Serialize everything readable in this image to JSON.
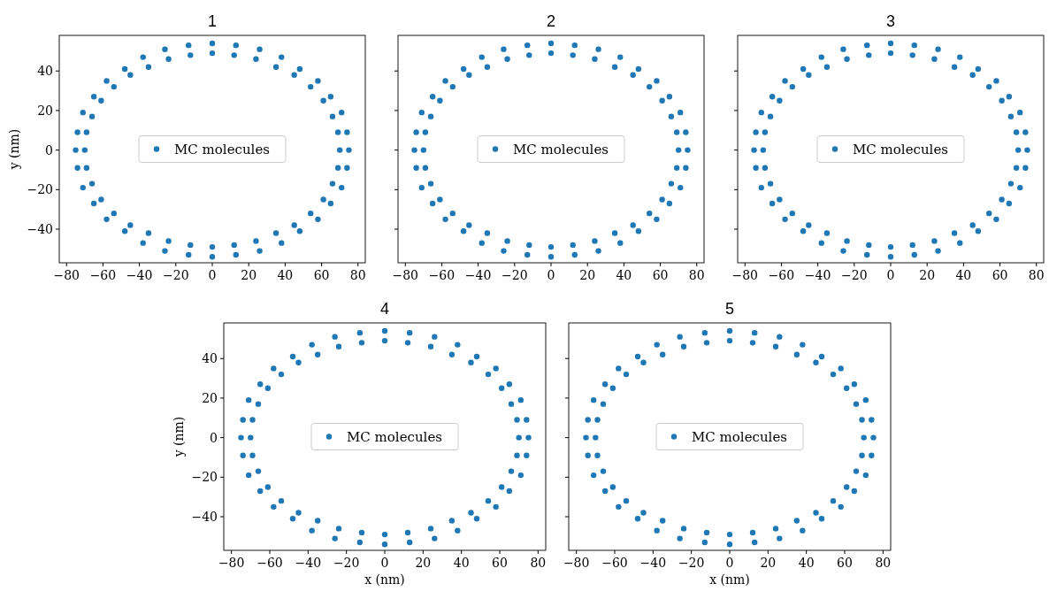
{
  "chart_data": [
    {
      "type": "scatter",
      "title": "1",
      "ylabel": "y (nm)",
      "xlim": [
        -84,
        84
      ],
      "ylim": [
        -57,
        58
      ],
      "xticks": [
        -80,
        -60,
        -40,
        -20,
        0,
        20,
        40,
        60,
        80
      ],
      "yticks": [
        -40,
        -20,
        0,
        20,
        40
      ],
      "legend": "center",
      "marker": "circle",
      "series": [
        {
          "name": "MC molecules",
          "color": "#1f77b4",
          "x": [
            75,
            74,
            71,
            65,
            58,
            48,
            38,
            26,
            13,
            0,
            -13,
            -26,
            -38,
            -48,
            -58,
            -65,
            -71,
            -74,
            -75,
            -74,
            -71,
            -65,
            -58,
            -48,
            -38,
            -26,
            -13,
            0,
            13,
            26,
            38,
            48,
            58,
            65,
            71,
            74,
            70,
            69,
            66,
            61,
            54,
            45,
            35,
            24,
            12,
            0,
            -12,
            -24,
            -35,
            -45,
            -54,
            -61,
            -66,
            -69,
            -70,
            -69,
            -66,
            -61,
            -54,
            -45,
            -35,
            -24,
            -12,
            0,
            12,
            24,
            35,
            45,
            54,
            61,
            66,
            69
          ],
          "values": [
            0,
            9,
            19,
            27,
            35,
            41,
            47,
            51,
            53,
            54,
            53,
            51,
            47,
            41,
            35,
            27,
            19,
            9,
            0,
            -9,
            -19,
            -27,
            -35,
            -41,
            -47,
            -51,
            -53,
            -54,
            -53,
            -51,
            -47,
            -41,
            -35,
            -27,
            -19,
            -9,
            0,
            9,
            17,
            25,
            32,
            38,
            42,
            46,
            48,
            49,
            48,
            46,
            42,
            38,
            32,
            25,
            17,
            9,
            0,
            -9,
            -17,
            -25,
            -32,
            -38,
            -42,
            -46,
            -48,
            -49,
            -48,
            -46,
            -42,
            -38,
            -32,
            -25,
            -17,
            -9
          ]
        }
      ]
    },
    {
      "type": "scatter",
      "title": "2",
      "xlim": [
        -84,
        84
      ],
      "ylim": [
        -57,
        58
      ],
      "xticks": [
        -80,
        -60,
        -40,
        -20,
        0,
        20,
        40,
        60,
        80
      ],
      "yticks": [
        -40,
        -20,
        0,
        20,
        40
      ],
      "tick_labels": "x",
      "legend": "center",
      "marker": "circle",
      "series": [
        {
          "name": "MC molecules",
          "color": "#1f77b4",
          "x": [
            75,
            74,
            71,
            65,
            58,
            48,
            38,
            26,
            13,
            0,
            -13,
            -26,
            -38,
            -48,
            -58,
            -65,
            -71,
            -74,
            -75,
            -74,
            -71,
            -65,
            -58,
            -48,
            -38,
            -26,
            -13,
            0,
            13,
            26,
            38,
            48,
            58,
            65,
            71,
            74,
            70,
            69,
            66,
            61,
            54,
            45,
            35,
            24,
            12,
            0,
            -12,
            -24,
            -35,
            -45,
            -54,
            -61,
            -66,
            -69,
            -70,
            -69,
            -66,
            -61,
            -54,
            -45,
            -35,
            -24,
            -12,
            0,
            12,
            24,
            35,
            45,
            54,
            61,
            66,
            69
          ],
          "values": [
            0,
            9,
            19,
            27,
            35,
            41,
            47,
            51,
            53,
            54,
            53,
            51,
            47,
            41,
            35,
            27,
            19,
            9,
            0,
            -9,
            -19,
            -27,
            -35,
            -41,
            -47,
            -51,
            -53,
            -54,
            -53,
            -51,
            -47,
            -41,
            -35,
            -27,
            -19,
            -9,
            0,
            9,
            17,
            25,
            32,
            38,
            42,
            46,
            48,
            49,
            48,
            46,
            42,
            38,
            32,
            25,
            17,
            9,
            0,
            -9,
            -17,
            -25,
            -32,
            -38,
            -42,
            -46,
            -48,
            -49,
            -48,
            -46,
            -42,
            -38,
            -32,
            -25,
            -17,
            -9
          ]
        }
      ]
    },
    {
      "type": "scatter",
      "title": "3",
      "xlim": [
        -84,
        84
      ],
      "ylim": [
        -57,
        58
      ],
      "xticks": [
        -80,
        -60,
        -40,
        -20,
        0,
        20,
        40,
        60,
        80
      ],
      "yticks": [
        -40,
        -20,
        0,
        20,
        40
      ],
      "tick_labels": "x",
      "legend": "center",
      "marker": "circle",
      "series": [
        {
          "name": "MC molecules",
          "color": "#1f77b4",
          "x": [
            75,
            74,
            71,
            65,
            58,
            48,
            38,
            26,
            13,
            0,
            -13,
            -26,
            -38,
            -48,
            -58,
            -65,
            -71,
            -74,
            -75,
            -74,
            -71,
            -65,
            -58,
            -48,
            -38,
            -26,
            -13,
            0,
            13,
            26,
            38,
            48,
            58,
            65,
            71,
            74,
            70,
            69,
            66,
            61,
            54,
            45,
            35,
            24,
            12,
            0,
            -12,
            -24,
            -35,
            -45,
            -54,
            -61,
            -66,
            -69,
            -70,
            -69,
            -66,
            -61,
            -54,
            -45,
            -35,
            -24,
            -12,
            0,
            12,
            24,
            35,
            45,
            54,
            61,
            66,
            69
          ],
          "values": [
            0,
            9,
            19,
            27,
            35,
            41,
            47,
            51,
            53,
            54,
            53,
            51,
            47,
            41,
            35,
            27,
            19,
            9,
            0,
            -9,
            -19,
            -27,
            -35,
            -41,
            -47,
            -51,
            -53,
            -54,
            -53,
            -51,
            -47,
            -41,
            -35,
            -27,
            -19,
            -9,
            0,
            9,
            17,
            25,
            32,
            38,
            42,
            46,
            48,
            49,
            48,
            46,
            42,
            38,
            32,
            25,
            17,
            9,
            0,
            -9,
            -17,
            -25,
            -32,
            -38,
            -42,
            -46,
            -48,
            -49,
            -48,
            -46,
            -42,
            -38,
            -32,
            -25,
            -17,
            -9
          ]
        }
      ]
    },
    {
      "type": "scatter",
      "title": "4",
      "xlabel": "x (nm)",
      "ylabel": "y (nm)",
      "xlim": [
        -84,
        84
      ],
      "ylim": [
        -57,
        58
      ],
      "xticks": [
        -80,
        -60,
        -40,
        -20,
        0,
        20,
        40,
        60,
        80
      ],
      "yticks": [
        -40,
        -20,
        0,
        20,
        40
      ],
      "legend": "center",
      "marker": "circle",
      "series": [
        {
          "name": "MC molecules",
          "color": "#1f77b4",
          "x": [
            75,
            74,
            71,
            65,
            58,
            48,
            38,
            26,
            13,
            0,
            -13,
            -26,
            -38,
            -48,
            -58,
            -65,
            -71,
            -74,
            -75,
            -74,
            -71,
            -65,
            -58,
            -48,
            -38,
            -26,
            -13,
            0,
            13,
            26,
            38,
            48,
            58,
            65,
            71,
            74,
            70,
            69,
            66,
            61,
            54,
            45,
            35,
            24,
            12,
            0,
            -12,
            -24,
            -35,
            -45,
            -54,
            -61,
            -66,
            -69,
            -70,
            -69,
            -66,
            -61,
            -54,
            -45,
            -35,
            -24,
            -12,
            0,
            12,
            24,
            35,
            45,
            54,
            61,
            66,
            69
          ],
          "values": [
            0,
            9,
            19,
            27,
            35,
            41,
            47,
            51,
            53,
            54,
            53,
            51,
            47,
            41,
            35,
            27,
            19,
            9,
            0,
            -9,
            -19,
            -27,
            -35,
            -41,
            -47,
            -51,
            -53,
            -54,
            -53,
            -51,
            -47,
            -41,
            -35,
            -27,
            -19,
            -9,
            0,
            9,
            17,
            25,
            32,
            38,
            42,
            46,
            48,
            49,
            48,
            46,
            42,
            38,
            32,
            25,
            17,
            9,
            0,
            -9,
            -17,
            -25,
            -32,
            -38,
            -42,
            -46,
            -48,
            -49,
            -48,
            -46,
            -42,
            -38,
            -32,
            -25,
            -17,
            -9
          ]
        }
      ]
    },
    {
      "type": "scatter",
      "title": "5",
      "xlabel": "x (nm)",
      "xlim": [
        -84,
        84
      ],
      "ylim": [
        -57,
        58
      ],
      "xticks": [
        -80,
        -60,
        -40,
        -20,
        0,
        20,
        40,
        60,
        80
      ],
      "yticks": [
        -40,
        -20,
        0,
        20,
        40
      ],
      "tick_labels": "x",
      "legend": "center",
      "marker": "circle",
      "series": [
        {
          "name": "MC molecules",
          "color": "#1f77b4",
          "x": [
            75,
            74,
            71,
            65,
            58,
            48,
            38,
            26,
            13,
            0,
            -13,
            -26,
            -38,
            -48,
            -58,
            -65,
            -71,
            -74,
            -75,
            -74,
            -71,
            -65,
            -58,
            -48,
            -38,
            -26,
            -13,
            0,
            13,
            26,
            38,
            48,
            58,
            65,
            71,
            74,
            70,
            69,
            66,
            61,
            54,
            45,
            35,
            24,
            12,
            0,
            -12,
            -24,
            -35,
            -45,
            -54,
            -61,
            -66,
            -69,
            -70,
            -69,
            -66,
            -61,
            -54,
            -45,
            -35,
            -24,
            -12,
            0,
            12,
            24,
            35,
            45,
            54,
            61,
            66,
            69
          ],
          "values": [
            0,
            9,
            19,
            27,
            35,
            41,
            47,
            51,
            53,
            54,
            53,
            51,
            47,
            41,
            35,
            27,
            19,
            9,
            0,
            -9,
            -19,
            -27,
            -35,
            -41,
            -47,
            -51,
            -53,
            -54,
            -53,
            -51,
            -47,
            -41,
            -35,
            -27,
            -19,
            -9,
            0,
            9,
            17,
            25,
            32,
            38,
            42,
            46,
            48,
            49,
            48,
            46,
            42,
            38,
            32,
            25,
            17,
            9,
            0,
            -9,
            -17,
            -25,
            -32,
            -38,
            -42,
            -46,
            -48,
            -49,
            -48,
            -46,
            -42,
            -38,
            -32,
            -25,
            -17,
            -9
          ]
        }
      ]
    }
  ]
}
